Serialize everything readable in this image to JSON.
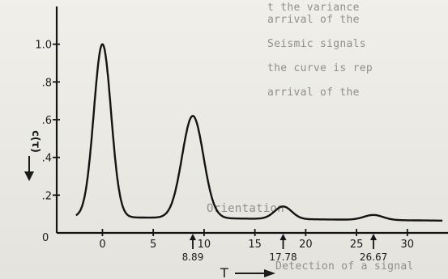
{
  "background_text": {
    "lines": [
      "t the variance",
      "arrival of the",
      "Seismic signals",
      "the curve is rep",
      "arrival of the"
    ],
    "heading": "Orientation",
    "bottom_line": "Detection of a signal"
  },
  "chart_data": {
    "type": "line",
    "title": "",
    "xlabel": "T",
    "ylabel": "c(τ)",
    "xlim": [
      -4.5,
      34
    ],
    "ylim": [
      0,
      1.2
    ],
    "x_ticks": [
      0,
      5,
      10,
      15,
      20,
      25,
      30
    ],
    "y_ticks": [
      0.2,
      0.4,
      0.6,
      0.8,
      1.0
    ],
    "y_tick_labels": [
      ".2",
      ".4",
      ".6",
      ".8",
      "1.0"
    ],
    "x_tick_labels": [
      "0",
      "5",
      "10",
      "15",
      "20",
      "25",
      "30"
    ],
    "y_origin_label": "0",
    "peaks": [
      {
        "x": 0,
        "y": 1.0
      },
      {
        "x": 8.89,
        "y": 0.62
      },
      {
        "x": 17.78,
        "y": 0.14
      },
      {
        "x": 26.67,
        "y": 0.095
      }
    ],
    "baseline": {
      "start": 0.085,
      "end": 0.065
    },
    "markers": [
      {
        "x": 8.89,
        "label": "8.89"
      },
      {
        "x": 17.78,
        "label": "17.78"
      },
      {
        "x": 26.67,
        "label": "26.67"
      }
    ],
    "grid": false,
    "line_color": "#141414"
  }
}
